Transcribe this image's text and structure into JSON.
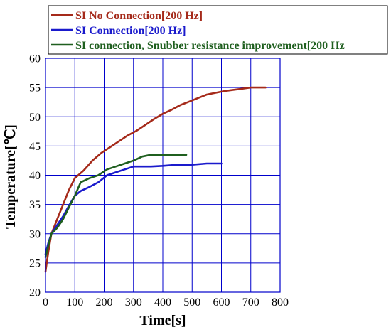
{
  "chart_data": {
    "type": "line",
    "xlabel": "Time[s]",
    "ylabel": "Temperature[℃]",
    "xlim": [
      0,
      800
    ],
    "ylim": [
      20,
      60
    ],
    "x_ticks": [
      0,
      100,
      200,
      300,
      400,
      500,
      600,
      700,
      800
    ],
    "y_ticks": [
      20,
      25,
      30,
      35,
      40,
      45,
      50,
      55,
      60
    ],
    "grid": true,
    "legend_position": "top",
    "series": [
      {
        "name": "SI No Connection[200 Hz]",
        "color": "#a52a1a",
        "x": [
          0,
          10,
          20,
          40,
          60,
          80,
          100,
          130,
          160,
          190,
          220,
          250,
          280,
          310,
          340,
          370,
          400,
          430,
          460,
          490,
          520,
          550,
          580,
          610,
          640,
          670,
          700,
          720,
          750
        ],
        "y": [
          23.5,
          27.0,
          30.0,
          32.5,
          35.0,
          37.5,
          39.5,
          40.8,
          42.5,
          43.8,
          44.8,
          45.8,
          46.8,
          47.6,
          48.6,
          49.6,
          50.5,
          51.2,
          52.0,
          52.6,
          53.2,
          53.8,
          54.1,
          54.4,
          54.6,
          54.8,
          55.0,
          55.0,
          55.0
        ]
      },
      {
        "name": "SI Connection[200 Hz]",
        "color": "#1a1acc",
        "x": [
          0,
          10,
          20,
          40,
          60,
          80,
          100,
          120,
          150,
          180,
          210,
          240,
          270,
          300,
          330,
          360,
          400,
          450,
          500,
          550,
          600
        ],
        "y": [
          26.5,
          28.5,
          30.0,
          31.5,
          33.0,
          34.8,
          36.5,
          37.3,
          38.0,
          38.8,
          40.0,
          40.5,
          41.0,
          41.5,
          41.5,
          41.5,
          41.6,
          41.8,
          41.8,
          42.0,
          42.0
        ]
      },
      {
        "name": "SI connection, Snubber resistance improvement[200 Hz",
        "color": "#1f5f1f",
        "x": [
          0,
          10,
          20,
          40,
          60,
          80,
          100,
          120,
          150,
          180,
          210,
          240,
          270,
          300,
          330,
          360,
          400,
          450,
          480
        ],
        "y": [
          26.0,
          28.0,
          30.0,
          31.0,
          32.5,
          34.5,
          36.5,
          38.8,
          39.5,
          40.0,
          41.0,
          41.5,
          42.0,
          42.5,
          43.2,
          43.5,
          43.5,
          43.5,
          43.5
        ]
      }
    ]
  }
}
